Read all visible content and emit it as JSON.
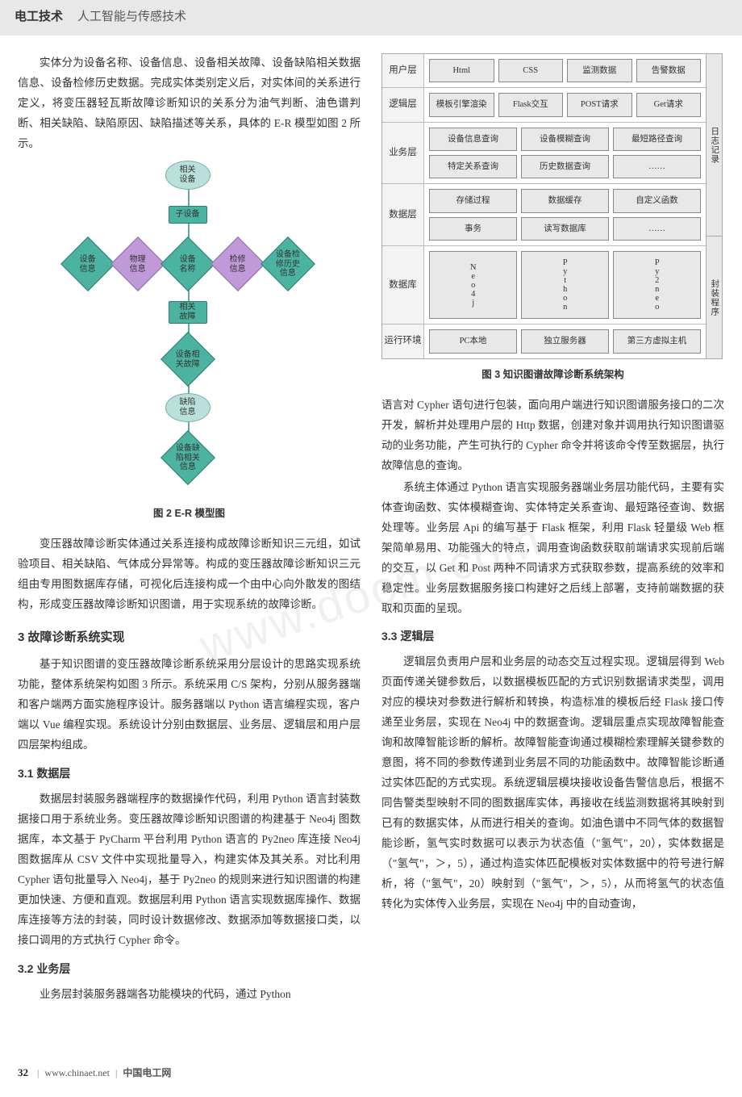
{
  "header": {
    "bold": "电工技术",
    "sub": "人工智能与传感技术"
  },
  "leftCol": {
    "p1": "实体分为设备名称、设备信息、设备相关故障、设备缺陷相关数据信息、设备检修历史数据。完成实体类别定义后，对实体间的关系进行定义，将变压器轻瓦斯故障诊断知识的关系分为油气判断、油色谱判断、相关缺陷、缺陷原因、缺陷描述等关系，具体的 E-R 模型如图 2 所示。",
    "fig2_caption": "图 2  E-R 模型图",
    "p2": "变压器故障诊断实体通过关系连接构成故障诊断知识三元组，如试验项目、相关缺陷、气体成分异常等。构成的变压器故障诊断知识三元组由专用图数据库存储，可视化后连接构成一个由中心向外散发的图结构，形成变压器故障诊断知识图谱，用于实现系统的故障诊断。",
    "h3_3": "3 故障诊断系统实现",
    "p3": "基于知识图谱的变压器故障诊断系统采用分层设计的思路实现系统功能，整体系统架构如图 3 所示。系统采用 C/S 架构，分别从服务器端和客户端两方面实施程序设计。服务器端以 Python 语言编程实现，客户端以 Vue 编程实现。系统设计分别由数据层、业务层、逻辑层和用户层四层架构组成。",
    "h31": "3.1 数据层",
    "p31": "数据层封装服务器端程序的数据操作代码，利用 Python 语言封装数据接口用于系统业务。变压器故障诊断知识图谱的构建基于 Neo4j 图数据库，本文基于 PyCharm 平台利用 Python 语言的 Py2neo 库连接 Neo4j 图数据库从 CSV 文件中实现批量导入，构建实体及其关系。对比利用 Cypher 语句批量导入 Neo4j，基于 Py2neo 的规则来进行知识图谱的构建更加快速、方便和直观。数据层利用 Python 语言实现数据库操作、数据库连接等方法的封装，同时设计数据修改、数据添加等数据接口类，以接口调用的方式执行 Cypher 命令。",
    "h32": "3.2 业务层",
    "p32": "业务层封装服务器端各功能模块的代码，通过 Python"
  },
  "rightCol": {
    "fig3_caption": "图 3  知识图谱故障诊断系统架构",
    "p1": "语言对 Cypher 语句进行包装，面向用户端进行知识图谱服务接口的二次开发，解析并处理用户层的 Http 数据，创建对象并调用执行知识图谱驱动的业务功能，产生可执行的 Cypher 命令并将该命令传至数据层，执行故障信息的查询。",
    "p2": "系统主体通过 Python 语言实现服务器端业务层功能代码，主要有实体查询函数、实体模糊查询、实体特定关系查询、最短路径查询、数据处理等。业务层 Api 的编写基于 Flask 框架，利用 Flask 轻量级 Web 框架简单易用、功能强大的特点，调用查询函数获取前端请求实现前后端的交互，以 Get 和 Post 两种不同请求方式获取参数，提高系统的效率和稳定性。业务层数据服务接口构建好之后线上部署，支持前端数据的获取和页面的呈现。",
    "h33": "3.3 逻辑层",
    "p33": "逻辑层负责用户层和业务层的动态交互过程实现。逻辑层得到 Web 页面传递关键参数后，以数据模板匹配的方式识别数据请求类型，调用对应的模块对参数进行解析和转换，构造标准的模板后经 Flask 接口传递至业务层，实现在 Neo4j 中的数据查询。逻辑层重点实现故障智能查询和故障智能诊断的解析。故障智能查询通过模糊检索理解关键参数的意图，将不同的参数传递到业务层不同的功能函数中。故障智能诊断通过实体匹配的方式实现。系统逻辑层模块接收设备告警信息后，根据不同告警类型映射不同的图数据库实体，再接收在线监测数据将其映射到已有的数据实体，从而进行相关的查询。如油色谱中不同气体的数据智能诊断，氢气实时数据可以表示为状态值（\"氢气\"，20），实体数据是（\"氢气\"，＞，5），通过构造实体匹配模板对实体数据中的符号进行解析，将（\"氢气\"，20）映射到（\"氢气\"，＞，5），从而将氢气的状态值转化为实体传入业务层，实现在 Neo4j 中的自动查询，"
  },
  "fig2": {
    "nodes": {
      "topEllipse": "相关\n设备",
      "childRect": "子设备",
      "leftDiamond": "设备\n信息",
      "leftDiamond2": "物理\n信息",
      "centerDiamond": "设备\n名称",
      "rightDiamond1": "检修\n信息",
      "rightDiamond2": "设备检\n修历史\n信息",
      "downRect": "相关\n故障",
      "downDiamond": "设备相\n关故障",
      "ellipse2": "缺陷\n信息",
      "bottomDiamond": "设备缺\n陷相关\n信息"
    },
    "colors": {
      "greenFill": "#4CB3A0",
      "greenBorder": "#2a8070",
      "purpleFill": "#C099D9",
      "purpleBorder": "#8a6fa5",
      "ellipseFill": "#BBE0DA",
      "ellipseBorder": "#6fb2a5",
      "line": "#5FA89D"
    }
  },
  "fig3": {
    "layers": [
      {
        "label": "用户层",
        "rows": [
          [
            "Html",
            "CSS",
            "监测数据",
            "告警数据"
          ]
        ]
      },
      {
        "label": "逻辑层",
        "rows": [
          [
            "模板引擎渲染",
            "Flask交互",
            "POST请求",
            "Get请求"
          ]
        ]
      },
      {
        "label": "业务层",
        "rows": [
          [
            "设备信息查询",
            "设备模糊查询",
            "最短路径查询"
          ],
          [
            "特定关系查询",
            "历史数据查询",
            "……"
          ]
        ]
      },
      {
        "label": "数据层",
        "rows": [
          [
            "存储过程",
            "数据缓存",
            "自定义函数"
          ],
          [
            "事务",
            "读写数据库",
            "……"
          ]
        ]
      },
      {
        "label": "数据库",
        "rows": [
          [
            "Neo4j",
            "Python",
            "Py2neo"
          ]
        ],
        "vertical": true
      },
      {
        "label": "运行环境",
        "rows": [
          [
            "PC本地",
            "独立服务器",
            "第三方虚拟主机"
          ]
        ]
      }
    ],
    "sideLabels": {
      "log": "日志记录",
      "wrap": "封装程序"
    }
  },
  "footer": {
    "pageNum": "32",
    "site": "www.chinaet.net",
    "brand": "中国电工网"
  },
  "watermark": "www.docm.com"
}
